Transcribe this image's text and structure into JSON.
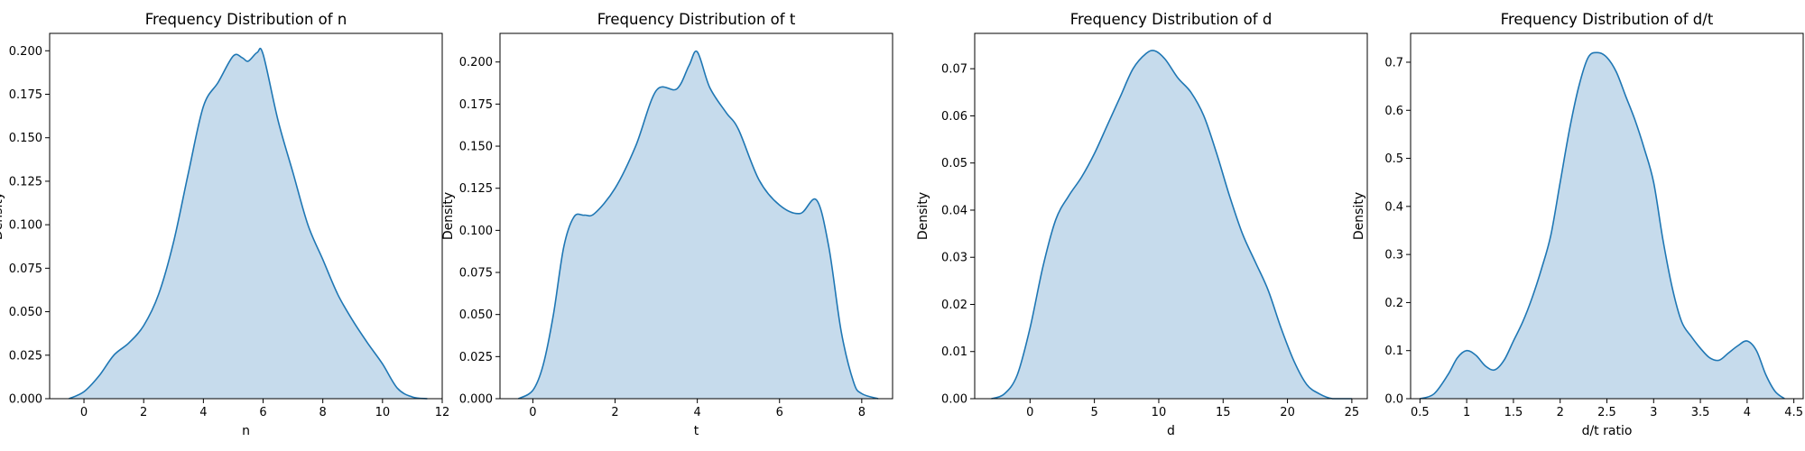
{
  "chart_data": [
    {
      "type": "area",
      "title": "Frequency Distribution of n",
      "xlabel": "n",
      "ylabel": "Density",
      "xlim": [
        -1.15,
        12.0
      ],
      "ylim": [
        0,
        0.21
      ],
      "xticks": [
        0,
        2,
        4,
        6,
        8,
        10,
        12
      ],
      "yticks": [
        0.0,
        0.025,
        0.05,
        0.075,
        0.1,
        0.125,
        0.15,
        0.175,
        0.2
      ],
      "ytick_labels": [
        "0.000",
        "0.025",
        "0.050",
        "0.075",
        "0.100",
        "0.125",
        "0.150",
        "0.175",
        "0.200"
      ],
      "fill_color": "#c6dbec",
      "line_color": "#1f77b4",
      "x": [
        -0.5,
        0.0,
        0.5,
        1.0,
        1.5,
        2.0,
        2.5,
        3.0,
        3.5,
        4.0,
        4.5,
        5.0,
        5.3,
        5.5,
        5.8,
        6.0,
        6.5,
        7.0,
        7.5,
        8.0,
        8.5,
        9.0,
        9.5,
        10.0,
        10.5,
        11.0,
        11.5
      ],
      "y": [
        0.0,
        0.004,
        0.013,
        0.025,
        0.032,
        0.042,
        0.06,
        0.09,
        0.13,
        0.168,
        0.182,
        0.197,
        0.196,
        0.194,
        0.199,
        0.198,
        0.16,
        0.13,
        0.1,
        0.08,
        0.06,
        0.045,
        0.032,
        0.02,
        0.006,
        0.001,
        0.0
      ]
    },
    {
      "type": "area",
      "title": "Frequency Distribution of t",
      "xlabel": "t",
      "ylabel": "Density",
      "xlim": [
        -0.8,
        8.75
      ],
      "ylim": [
        0,
        0.217
      ],
      "xticks": [
        0,
        2,
        4,
        6,
        8
      ],
      "yticks": [
        0.0,
        0.025,
        0.05,
        0.075,
        0.1,
        0.125,
        0.15,
        0.175,
        0.2
      ],
      "ytick_labels": [
        "0.000",
        "0.025",
        "0.050",
        "0.075",
        "0.100",
        "0.125",
        "0.150",
        "0.175",
        "0.200"
      ],
      "fill_color": "#c6dbec",
      "line_color": "#1f77b4",
      "x": [
        -0.35,
        0.0,
        0.25,
        0.5,
        0.75,
        1.0,
        1.25,
        1.5,
        2.0,
        2.5,
        3.0,
        3.5,
        3.8,
        4.0,
        4.3,
        4.7,
        5.0,
        5.5,
        6.0,
        6.5,
        6.9,
        7.2,
        7.5,
        7.8,
        8.0,
        8.4
      ],
      "y": [
        0.0,
        0.005,
        0.02,
        0.05,
        0.09,
        0.108,
        0.109,
        0.11,
        0.125,
        0.15,
        0.183,
        0.184,
        0.198,
        0.206,
        0.185,
        0.17,
        0.16,
        0.13,
        0.115,
        0.11,
        0.118,
        0.09,
        0.04,
        0.01,
        0.003,
        0.0
      ]
    },
    {
      "type": "area",
      "title": "Frequency Distribution of d",
      "xlabel": "d",
      "ylabel": "Density",
      "xlim": [
        -4.3,
        26.2
      ],
      "ylim": [
        0,
        0.0775
      ],
      "xticks": [
        0,
        5,
        10,
        15,
        20,
        25
      ],
      "yticks": [
        0.0,
        0.01,
        0.02,
        0.03,
        0.04,
        0.05,
        0.06,
        0.07
      ],
      "ytick_labels": [
        "0.00",
        "0.01",
        "0.02",
        "0.03",
        "0.04",
        "0.05",
        "0.06",
        "0.07"
      ],
      "fill_color": "#c6dbec",
      "line_color": "#1f77b4",
      "x": [
        -3.0,
        -2.0,
        -1.0,
        0.0,
        1.0,
        2.0,
        3.0,
        4.0,
        5.0,
        6.0,
        7.0,
        8.0,
        9.0,
        9.7,
        10.5,
        11.5,
        12.5,
        13.5,
        14.5,
        15.5,
        16.5,
        17.5,
        18.5,
        19.5,
        20.5,
        21.5,
        22.5,
        23.5,
        25.0
      ],
      "y": [
        0.0,
        0.001,
        0.005,
        0.015,
        0.028,
        0.038,
        0.043,
        0.047,
        0.052,
        0.058,
        0.064,
        0.07,
        0.0732,
        0.0738,
        0.072,
        0.068,
        0.065,
        0.06,
        0.052,
        0.043,
        0.035,
        0.029,
        0.023,
        0.015,
        0.008,
        0.003,
        0.001,
        0.0,
        0.0
      ]
    },
    {
      "type": "area",
      "title": "Frequency Distribution of d/t",
      "xlabel": "d/t ratio",
      "ylabel": "Density",
      "xlim": [
        0.4,
        4.6
      ],
      "ylim": [
        0,
        0.76
      ],
      "xticks": [
        0.5,
        1.0,
        1.5,
        2.0,
        2.5,
        3.0,
        3.5,
        4.0,
        4.5
      ],
      "yticks": [
        0.0,
        0.1,
        0.2,
        0.3,
        0.4,
        0.5,
        0.6,
        0.7
      ],
      "ytick_labels": [
        "0.0",
        "0.1",
        "0.2",
        "0.3",
        "0.4",
        "0.5",
        "0.6",
        "0.7"
      ],
      "fill_color": "#c6dbec",
      "line_color": "#1f77b4",
      "x": [
        0.5,
        0.65,
        0.8,
        0.9,
        1.0,
        1.1,
        1.2,
        1.3,
        1.4,
        1.5,
        1.6,
        1.7,
        1.8,
        1.9,
        2.0,
        2.1,
        2.2,
        2.3,
        2.4,
        2.5,
        2.6,
        2.7,
        2.8,
        2.9,
        3.0,
        3.1,
        3.2,
        3.3,
        3.4,
        3.5,
        3.6,
        3.7,
        3.8,
        3.9,
        4.0,
        4.1,
        4.2,
        4.3,
        4.4
      ],
      "y": [
        0.0,
        0.01,
        0.05,
        0.085,
        0.1,
        0.09,
        0.068,
        0.06,
        0.08,
        0.12,
        0.16,
        0.21,
        0.27,
        0.34,
        0.45,
        0.56,
        0.65,
        0.71,
        0.72,
        0.71,
        0.68,
        0.63,
        0.58,
        0.52,
        0.45,
        0.33,
        0.23,
        0.16,
        0.13,
        0.105,
        0.085,
        0.08,
        0.095,
        0.11,
        0.12,
        0.1,
        0.05,
        0.015,
        0.0
      ]
    }
  ]
}
